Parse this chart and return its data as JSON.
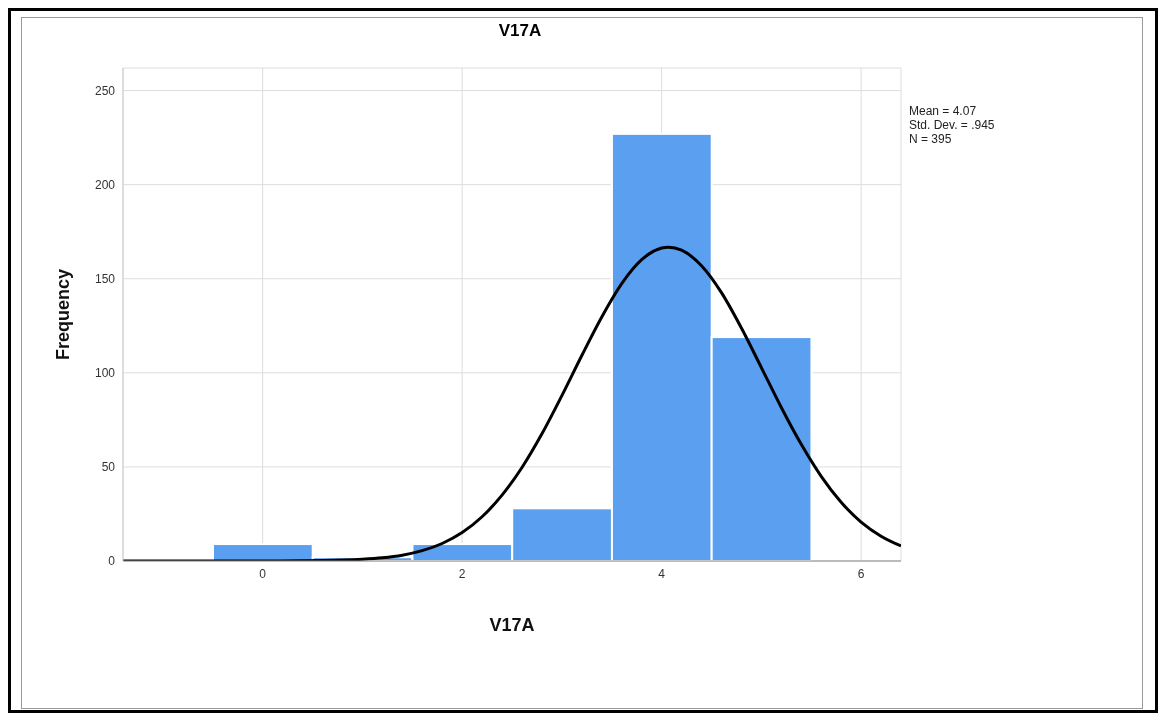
{
  "chart_data": {
    "type": "histogram",
    "title": "V17A",
    "xlabel": "V17A",
    "ylabel": "Frequency",
    "bins": [
      -0.5,
      0.5,
      1.5,
      2.5,
      3.5,
      4.5,
      5.5
    ],
    "values": [
      9,
      2,
      9,
      28,
      227,
      119
    ],
    "color": "#5a9ff0",
    "series": [
      {
        "type": "line",
        "color": "#000000",
        "x": [
          -1.4,
          0,
          0.6,
          1,
          1.2,
          1.4,
          1.6,
          1.8,
          2,
          2.2,
          2.4,
          2.6,
          2.8,
          3,
          3.2,
          3.4,
          3.6,
          3.8,
          4,
          4.07,
          4.2,
          4.4,
          4.6,
          4.8,
          5,
          5.2,
          5.4,
          5.6,
          5.8,
          6,
          6.2,
          6.4
        ],
        "values": [
          0,
          0,
          0.2,
          0.9,
          1.7,
          3.1,
          5.5,
          9.3,
          15.1,
          23.5,
          35,
          49.7,
          67.6,
          87.9,
          109.2,
          129.7,
          147.4,
          160.1,
          166.3,
          166.8,
          165.2,
          156.9,
          142.6,
          123.8,
          102.8,
          81.6,
          62,
          45,
          31.2,
          20.7,
          13.2,
          8
        ]
      }
    ],
    "xlim": [
      -1.4,
      6.4
    ],
    "xticks": [
      0,
      2,
      4,
      6
    ],
    "ylim": [
      0,
      262
    ],
    "yticks": [
      0,
      50,
      100,
      150,
      200,
      250
    ],
    "grid": true,
    "annotations": [
      "Mean = 4.07",
      "Std. Dev. = .945",
      "N = 395"
    ]
  }
}
